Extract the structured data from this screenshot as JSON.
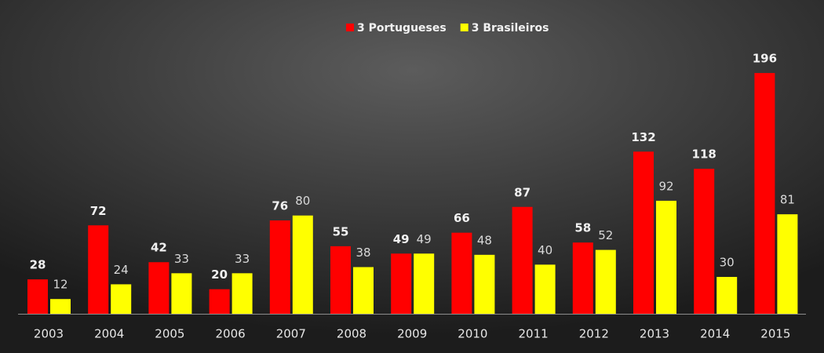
{
  "chart_data": {
    "type": "bar",
    "categories": [
      "2003",
      "2004",
      "2005",
      "2006",
      "2007",
      "2008",
      "2009",
      "2010",
      "2011",
      "2012",
      "2013",
      "2014",
      "2015"
    ],
    "series": [
      {
        "name": "3 Portugueses",
        "color": "#ff0000",
        "values": [
          28,
          72,
          42,
          20,
          76,
          55,
          49,
          66,
          87,
          58,
          132,
          118,
          196
        ]
      },
      {
        "name": "3 Brasileiros",
        "color": "#ffff00",
        "values": [
          12,
          24,
          33,
          33,
          80,
          38,
          49,
          48,
          40,
          52,
          92,
          30,
          81
        ]
      }
    ],
    "ylim": [
      0,
      220
    ],
    "legend": "top"
  }
}
